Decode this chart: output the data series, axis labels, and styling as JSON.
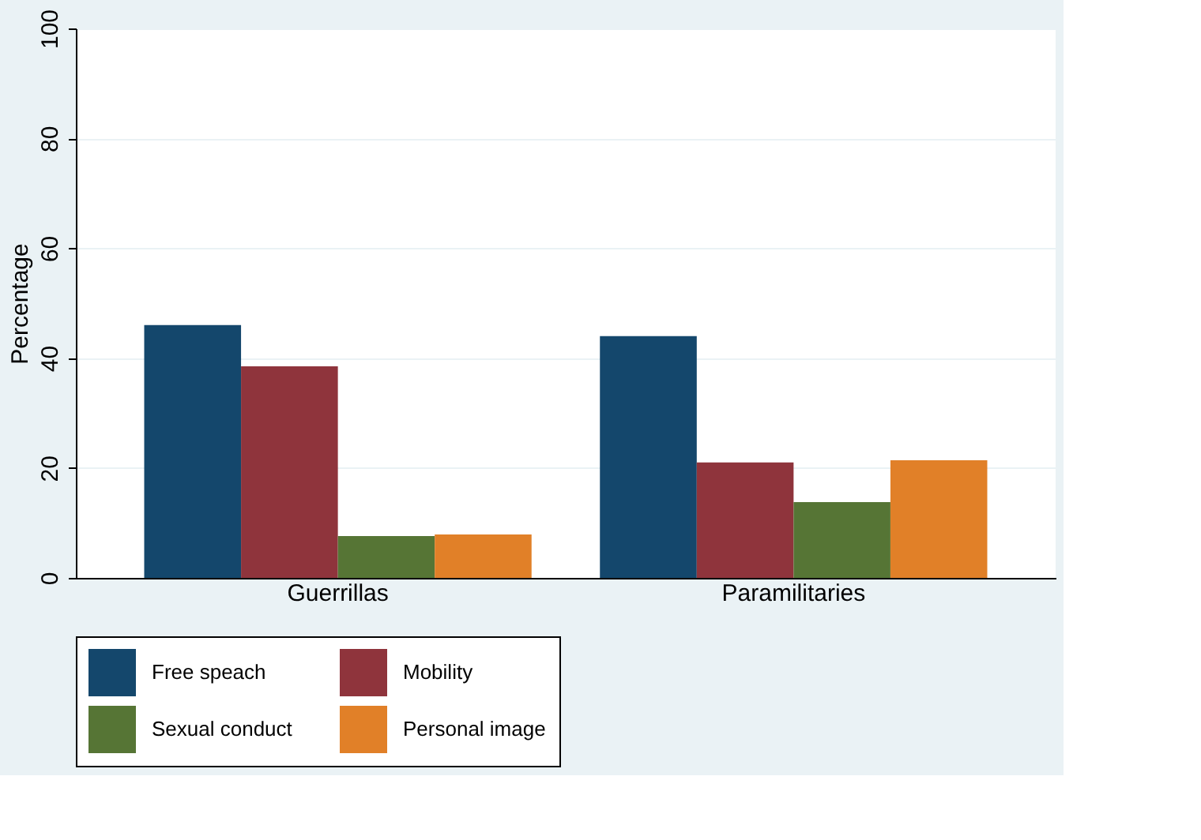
{
  "chart_data": {
    "type": "bar",
    "ylabel": "Percentage",
    "categories": [
      "Guerrillas",
      "Paramilitaries"
    ],
    "series": [
      {
        "name": "Free speach",
        "color": "#14476c",
        "values": [
          46,
          44
        ]
      },
      {
        "name": "Mobility",
        "color": "#8f343c",
        "values": [
          38.5,
          21
        ]
      },
      {
        "name": "Sexual conduct",
        "color": "#567535",
        "values": [
          7.6,
          13.8
        ]
      },
      {
        "name": "Personal image",
        "color": "#e18028",
        "values": [
          7.9,
          21.4
        ]
      }
    ],
    "ylim": [
      0,
      100
    ],
    "yticks": [
      0,
      20,
      40,
      60,
      80,
      100
    ],
    "grid": "y",
    "legend": "bottom"
  }
}
